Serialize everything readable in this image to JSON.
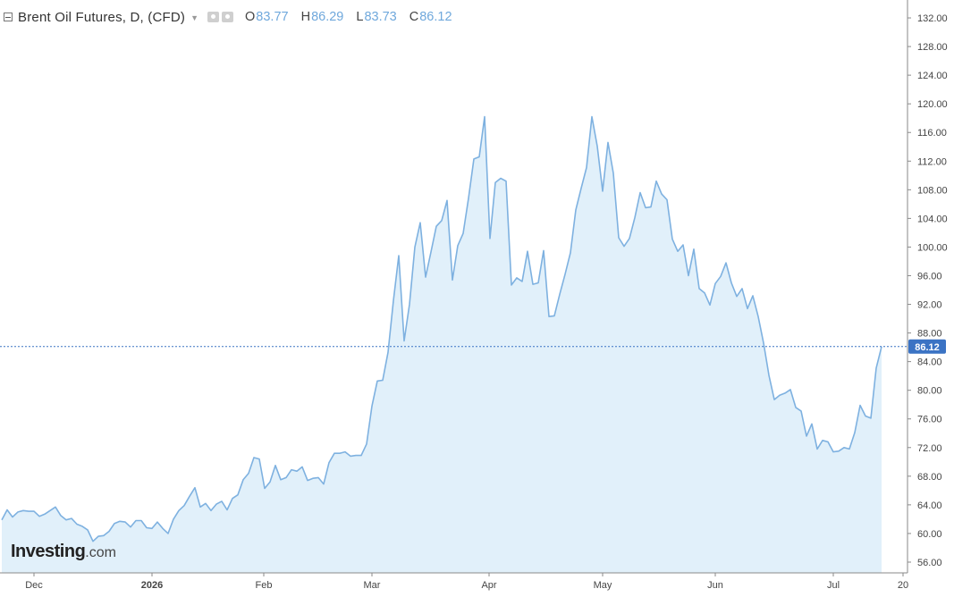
{
  "legend": {
    "title": "Brent Oil Futures, D, (CFD)",
    "open_label": "O",
    "open": "83.77",
    "high_label": "H",
    "high": "86.29",
    "low_label": "L",
    "low": "83.73",
    "close_label": "C",
    "close": "86.12"
  },
  "watermark": {
    "name": "Investing",
    "suffix": ".com"
  },
  "colors": {
    "line": "#7eb1e0",
    "fill": "#e1f0fa",
    "badge": "#3b73c4",
    "axis": "#999999",
    "text": "#333333"
  },
  "chart_data": {
    "type": "area",
    "x_ticks": [
      "Dec",
      "2026",
      "Feb",
      "Mar",
      "Apr",
      "May",
      "Jun",
      "Jul",
      "20"
    ],
    "y_ticks": [
      "56.00",
      "60.00",
      "64.00",
      "68.00",
      "72.00",
      "76.00",
      "80.00",
      "84.00",
      "88.00",
      "92.00",
      "96.00",
      "100.00",
      "104.00",
      "108.00",
      "112.00",
      "116.00",
      "120.00",
      "124.00",
      "128.00",
      "132.00"
    ],
    "ylim": [
      54.5,
      134.5
    ],
    "last_price": "86.12",
    "grid": false,
    "values": [
      61.9,
      63.3,
      62.3,
      63.0,
      63.2,
      63.1,
      63.1,
      62.4,
      62.7,
      63.2,
      63.7,
      62.5,
      61.9,
      62.1,
      61.3,
      61.0,
      60.5,
      58.9,
      59.6,
      59.7,
      60.3,
      61.4,
      61.7,
      61.6,
      60.9,
      61.8,
      61.8,
      60.8,
      60.7,
      61.6,
      60.7,
      60.0,
      62.0,
      63.2,
      63.9,
      65.2,
      66.4,
      63.7,
      64.2,
      63.2,
      64.1,
      64.5,
      63.3,
      64.9,
      65.4,
      67.5,
      68.4,
      70.6,
      70.4,
      66.3,
      67.2,
      69.5,
      67.5,
      67.8,
      68.9,
      68.7,
      69.3,
      67.4,
      67.7,
      67.8,
      66.9,
      69.9,
      71.2,
      71.2,
      71.4,
      70.8,
      70.9,
      70.9,
      72.5,
      77.8,
      81.3,
      81.4,
      85.3,
      92.5,
      98.8,
      86.9,
      92.0,
      100.0,
      103.4,
      95.8,
      99.3,
      102.9,
      103.7,
      106.5,
      95.4,
      100.2,
      101.9,
      106.8,
      112.3,
      112.6,
      118.2,
      101.2,
      109.0,
      109.6,
      109.2,
      94.7,
      95.7,
      95.2,
      99.4,
      94.8,
      95.0,
      99.5,
      90.3,
      90.4,
      93.4,
      96.2,
      99.2,
      105.2,
      108.2,
      111.1,
      118.2,
      114.1,
      107.8,
      114.6,
      110.3,
      101.3,
      100.1,
      101.2,
      104.1,
      107.6,
      105.5,
      105.6,
      109.2,
      107.4,
      106.6,
      101.1,
      99.4,
      100.3,
      96.0,
      99.7,
      94.2,
      93.6,
      91.9,
      94.9,
      95.9,
      97.8,
      95.0,
      93.1,
      94.2,
      91.4,
      93.2,
      90.3,
      86.6,
      82.1,
      78.7,
      79.3,
      79.6,
      80.1,
      77.6,
      77.1,
      73.6,
      75.3,
      71.8,
      73.0,
      72.8,
      71.4,
      71.5,
      72.0,
      71.8,
      74.1,
      77.9,
      76.4,
      76.1,
      83.1,
      86.1
    ]
  }
}
